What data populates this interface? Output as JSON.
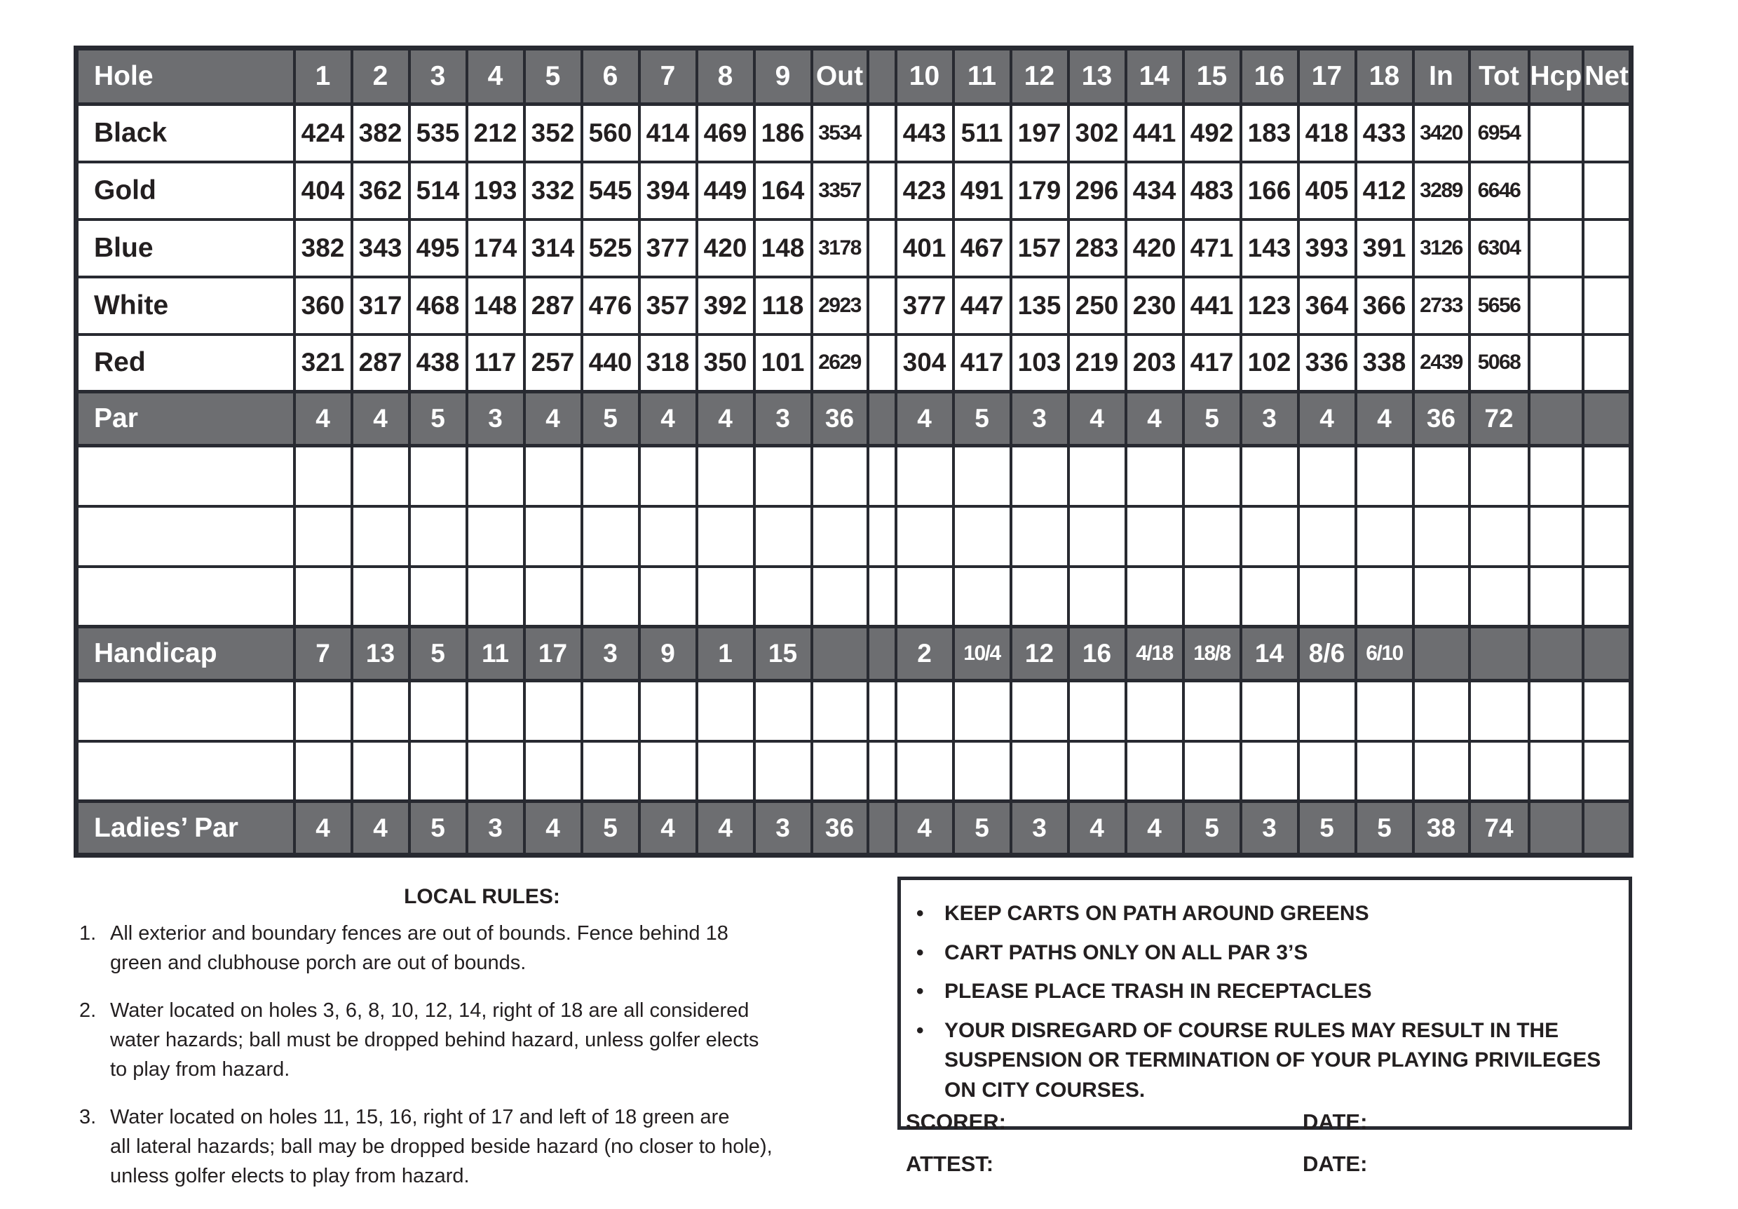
{
  "colors": {
    "grid_gray": "#6d6e71",
    "border": "#282a31",
    "text": "#231f20"
  },
  "table": {
    "rows": [
      {
        "label": "Hole",
        "type": "header",
        "values": [
          "1",
          "2",
          "3",
          "4",
          "5",
          "6",
          "7",
          "8",
          "9",
          "Out",
          "",
          "10",
          "11",
          "12",
          "13",
          "14",
          "15",
          "16",
          "17",
          "18",
          "In",
          "Tot",
          "Hcp",
          "Net"
        ]
      },
      {
        "label": "Black",
        "type": "data",
        "values": [
          "424",
          "382",
          "535",
          "212",
          "352",
          "560",
          "414",
          "469",
          "186",
          "3534",
          "",
          "443",
          "511",
          "197",
          "302",
          "441",
          "492",
          "183",
          "418",
          "433",
          "3420",
          "6954",
          "",
          ""
        ]
      },
      {
        "label": "Gold",
        "type": "data",
        "values": [
          "404",
          "362",
          "514",
          "193",
          "332",
          "545",
          "394",
          "449",
          "164",
          "3357",
          "",
          "423",
          "491",
          "179",
          "296",
          "434",
          "483",
          "166",
          "405",
          "412",
          "3289",
          "6646",
          "",
          ""
        ]
      },
      {
        "label": "Blue",
        "type": "data",
        "values": [
          "382",
          "343",
          "495",
          "174",
          "314",
          "525",
          "377",
          "420",
          "148",
          "3178",
          "",
          "401",
          "467",
          "157",
          "283",
          "420",
          "471",
          "143",
          "393",
          "391",
          "3126",
          "6304",
          "",
          ""
        ]
      },
      {
        "label": "White",
        "type": "data",
        "values": [
          "360",
          "317",
          "468",
          "148",
          "287",
          "476",
          "357",
          "392",
          "118",
          "2923",
          "",
          "377",
          "447",
          "135",
          "250",
          "230",
          "441",
          "123",
          "364",
          "366",
          "2733",
          "5656",
          "",
          ""
        ]
      },
      {
        "label": "Red",
        "type": "data",
        "values": [
          "321",
          "287",
          "438",
          "117",
          "257",
          "440",
          "318",
          "350",
          "101",
          "2629",
          "",
          "304",
          "417",
          "103",
          "219",
          "203",
          "417",
          "102",
          "336",
          "338",
          "2439",
          "5068",
          "",
          ""
        ]
      },
      {
        "label": "Par",
        "type": "gray",
        "values": [
          "4",
          "4",
          "5",
          "3",
          "4",
          "5",
          "4",
          "4",
          "3",
          "36",
          "",
          "4",
          "5",
          "3",
          "4",
          "4",
          "5",
          "3",
          "4",
          "4",
          "36",
          "72",
          "",
          ""
        ]
      },
      {
        "label": "",
        "type": "empty",
        "values": [
          "",
          "",
          "",
          "",
          "",
          "",
          "",
          "",
          "",
          "",
          "",
          "",
          "",
          "",
          "",
          "",
          "",
          "",
          "",
          "",
          "",
          "",
          "",
          ""
        ]
      },
      {
        "label": "",
        "type": "empty",
        "values": [
          "",
          "",
          "",
          "",
          "",
          "",
          "",
          "",
          "",
          "",
          "",
          "",
          "",
          "",
          "",
          "",
          "",
          "",
          "",
          "",
          "",
          "",
          "",
          ""
        ]
      },
      {
        "label": "",
        "type": "empty",
        "values": [
          "",
          "",
          "",
          "",
          "",
          "",
          "",
          "",
          "",
          "",
          "",
          "",
          "",
          "",
          "",
          "",
          "",
          "",
          "",
          "",
          "",
          "",
          "",
          ""
        ]
      },
      {
        "label": "Handicap",
        "type": "gray",
        "values": [
          "7",
          "13",
          "5",
          "11",
          "17",
          "3",
          "9",
          "1",
          "15",
          "",
          "",
          "2",
          "10/4",
          "12",
          "16",
          "4/18",
          "18/8",
          "14",
          "8/6",
          "6/10",
          "",
          "",
          "",
          ""
        ]
      },
      {
        "label": "",
        "type": "empty",
        "values": [
          "",
          "",
          "",
          "",
          "",
          "",
          "",
          "",
          "",
          "",
          "",
          "",
          "",
          "",
          "",
          "",
          "",
          "",
          "",
          "",
          "",
          "",
          "",
          ""
        ]
      },
      {
        "label": "",
        "type": "empty",
        "values": [
          "",
          "",
          "",
          "",
          "",
          "",
          "",
          "",
          "",
          "",
          "",
          "",
          "",
          "",
          "",
          "",
          "",
          "",
          "",
          "",
          "",
          "",
          "",
          ""
        ]
      },
      {
        "label": "Ladies’ Par",
        "type": "gray",
        "values": [
          "4",
          "4",
          "5",
          "3",
          "4",
          "5",
          "4",
          "4",
          "3",
          "36",
          "",
          "4",
          "5",
          "3",
          "4",
          "4",
          "5",
          "3",
          "5",
          "5",
          "38",
          "74",
          "",
          ""
        ]
      }
    ]
  },
  "local_rules": {
    "heading": "LOCAL RULES:",
    "items": [
      {
        "num": "1.",
        "text": "All exterior and boundary fences are out of bounds. Fence behind 18\ngreen and clubhouse porch are out of bounds."
      },
      {
        "num": "2.",
        "text": "Water located on holes 3, 6, 8, 10, 12, 14, right of 18 are all considered\nwater hazards; ball must be dropped behind hazard, unless golfer elects\nto play from hazard."
      },
      {
        "num": "3.",
        "text": "Water located on holes 11, 15, 16, right of 17 and left of 18 green are\nall lateral hazards; ball may be dropped beside hazard (no closer to hole),\nunless golfer elects to play from hazard."
      }
    ]
  },
  "course_rules": {
    "bullet": "•",
    "items": [
      "KEEP CARTS ON PATH AROUND GREENS",
      "CART PATHS ONLY ON ALL PAR 3’S",
      "PLEASE PLACE TRASH IN RECEPTACLES",
      "YOUR DISREGARD OF COURSE RULES MAY RESULT IN THE\nSUSPENSION OR TERMINATION OF YOUR PLAYING PRIVILEGES\nON CITY COURSES."
    ]
  },
  "sign_off": {
    "scorer_label": "SCORER:",
    "scorer_date_label": "DATE:",
    "attest_label": "ATTEST:",
    "attest_date_label": "DATE:"
  }
}
